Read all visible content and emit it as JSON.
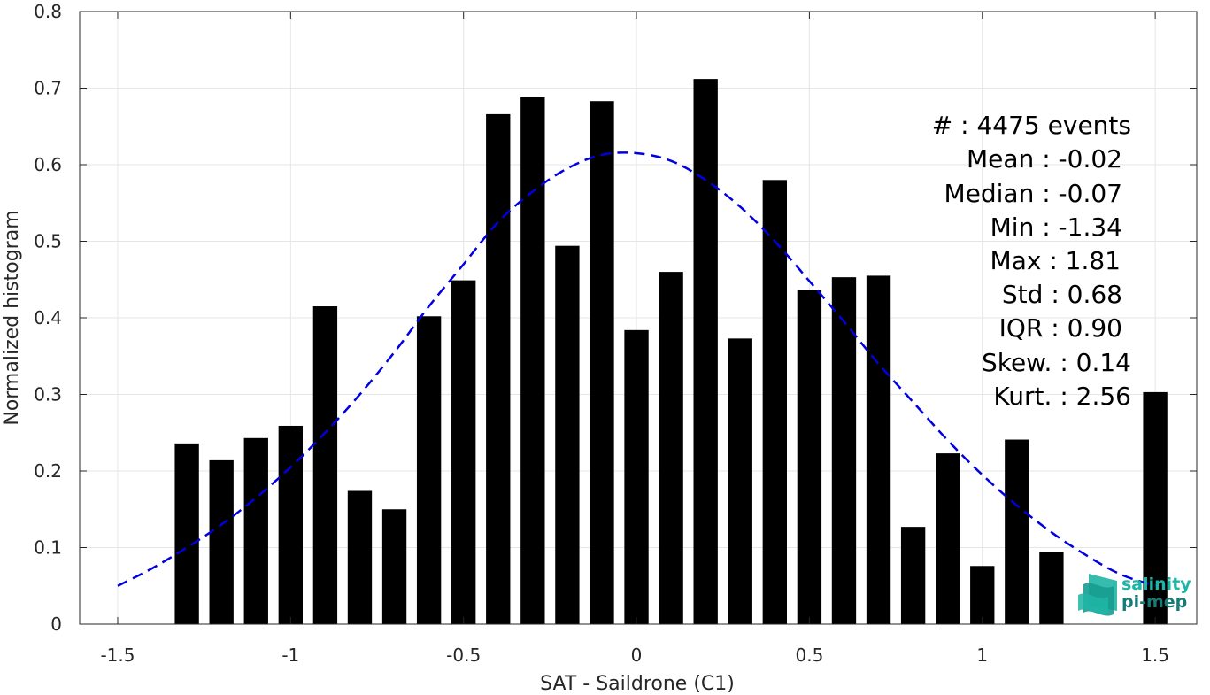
{
  "chart_data": {
    "type": "bar",
    "title": "",
    "xlabel": "SAT - Saildrone (C1)",
    "ylabel": "Normalized histogram",
    "xlim": [
      -1.61,
      1.62
    ],
    "ylim": [
      0,
      0.8
    ],
    "xticks": [
      -1.5,
      -1,
      -0.5,
      0,
      0.5,
      1,
      1.5
    ],
    "xtick_labels": [
      "-1.5",
      "-1",
      "-0.5",
      "0",
      "0.5",
      "1",
      "1.5"
    ],
    "yticks": [
      0,
      0.1,
      0.2,
      0.3,
      0.4,
      0.5,
      0.6,
      0.7,
      0.8
    ],
    "ytick_labels": [
      "0",
      "0.1",
      "0.2",
      "0.3",
      "0.4",
      "0.5",
      "0.6",
      "0.7",
      "0.8"
    ],
    "grid": true,
    "bar_width": 0.07,
    "bar_color": "#000000",
    "bins": [
      {
        "x": -1.3,
        "value": 0.236
      },
      {
        "x": -1.2,
        "value": 0.214
      },
      {
        "x": -1.1,
        "value": 0.243
      },
      {
        "x": -1.0,
        "value": 0.259
      },
      {
        "x": -0.9,
        "value": 0.415
      },
      {
        "x": -0.8,
        "value": 0.174
      },
      {
        "x": -0.7,
        "value": 0.15
      },
      {
        "x": -0.6,
        "value": 0.402
      },
      {
        "x": -0.5,
        "value": 0.449
      },
      {
        "x": -0.4,
        "value": 0.666
      },
      {
        "x": -0.3,
        "value": 0.688
      },
      {
        "x": -0.2,
        "value": 0.494
      },
      {
        "x": -0.1,
        "value": 0.683
      },
      {
        "x": 0.0,
        "value": 0.384
      },
      {
        "x": 0.1,
        "value": 0.46
      },
      {
        "x": 0.2,
        "value": 0.712
      },
      {
        "x": 0.3,
        "value": 0.373
      },
      {
        "x": 0.4,
        "value": 0.58
      },
      {
        "x": 0.5,
        "value": 0.436
      },
      {
        "x": 0.6,
        "value": 0.453
      },
      {
        "x": 0.7,
        "value": 0.455
      },
      {
        "x": 0.8,
        "value": 0.127
      },
      {
        "x": 0.9,
        "value": 0.223
      },
      {
        "x": 1.0,
        "value": 0.076
      },
      {
        "x": 1.1,
        "value": 0.241
      },
      {
        "x": 1.2,
        "value": 0.094
      },
      {
        "x": 1.5,
        "value": 0.303
      }
    ],
    "fit_curve": {
      "style": "dashed",
      "color": "#0000e0",
      "x": [
        -1.5,
        -1.4,
        -1.3,
        -1.2,
        -1.1,
        -1.0,
        -0.9,
        -0.8,
        -0.7,
        -0.6,
        -0.5,
        -0.4,
        -0.3,
        -0.2,
        -0.1,
        0.0,
        0.1,
        0.2,
        0.3,
        0.4,
        0.5,
        0.6,
        0.7,
        0.8,
        0.9,
        1.0,
        1.1,
        1.2,
        1.3,
        1.4,
        1.5
      ],
      "y": [
        0.05,
        0.073,
        0.1,
        0.13,
        0.165,
        0.205,
        0.25,
        0.3,
        0.355,
        0.415,
        0.47,
        0.525,
        0.565,
        0.595,
        0.613,
        0.615,
        0.605,
        0.58,
        0.545,
        0.5,
        0.448,
        0.395,
        0.34,
        0.29,
        0.24,
        0.195,
        0.155,
        0.12,
        0.09,
        0.065,
        0.05
      ]
    }
  },
  "stats": [
    {
      "label": "#  : 4475 events"
    },
    {
      "label": "Mean : -0.02"
    },
    {
      "label": "Median : -0.07"
    },
    {
      "label": "Min : -1.34"
    },
    {
      "label": "Max : 1.81"
    },
    {
      "label": "Std : 0.68"
    },
    {
      "label": "IQR : 0.90"
    },
    {
      "label": "Skew. : 0.14"
    },
    {
      "label": "Kurt. : 2.56"
    }
  ],
  "logo": {
    "line1": "salinity",
    "line2": "pi-mep",
    "color1": "#1fb5a6",
    "color2": "#177a74"
  }
}
